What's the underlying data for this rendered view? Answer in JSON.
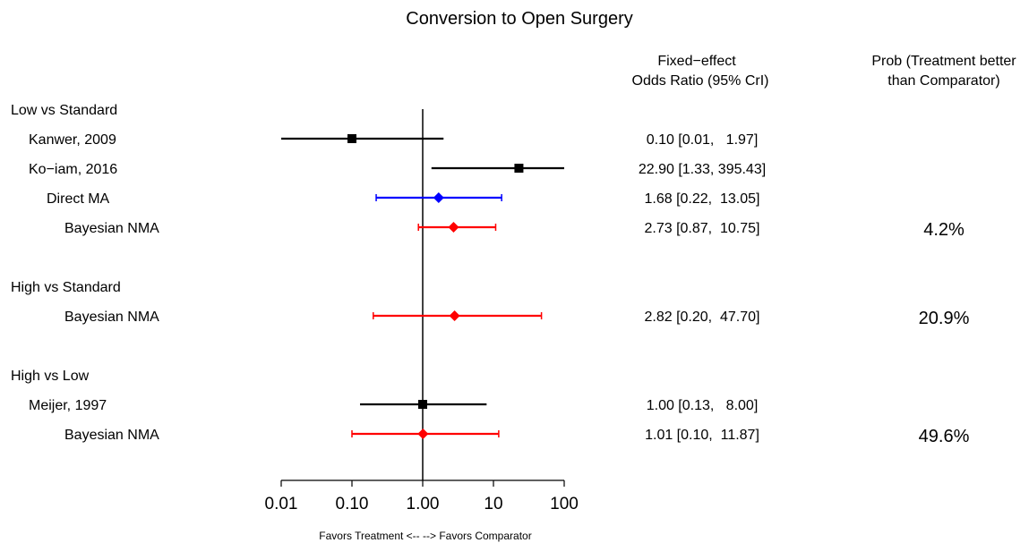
{
  "chart_data": {
    "type": "forest",
    "title": "Conversion to Open Surgery",
    "x_scale": "log10",
    "xlim": [
      0.01,
      100
    ],
    "reference_line": 1.0,
    "x_ticks": [
      {
        "value": 0.01,
        "label": "0.01"
      },
      {
        "value": 0.1,
        "label": "0.10"
      },
      {
        "value": 1,
        "label": "1.00"
      },
      {
        "value": 10,
        "label": "10"
      },
      {
        "value": 100,
        "label": "100"
      }
    ],
    "xlabel": "Favors Treatment <-- --> Favors Comparator",
    "column_headers": {
      "estimate": [
        "Fixed−effect",
        "Odds Ratio (95% CrI)"
      ],
      "probability": [
        "Prob (Treatment better",
        "than Comparator)"
      ]
    },
    "groups": [
      {
        "label": "Low vs Standard",
        "rows": [
          {
            "label": "Kanwer, 2009",
            "type": "study",
            "estimate": 0.1,
            "lower": 0.01,
            "upper": 1.97,
            "text": "0.10 [0.01,   1.97]",
            "color": "#000000",
            "prob": ""
          },
          {
            "label": "Ko−iam, 2016",
            "type": "study",
            "estimate": 22.9,
            "lower": 1.33,
            "upper": 395.43,
            "text": "22.90 [1.33, 395.43]",
            "color": "#000000",
            "prob": ""
          },
          {
            "label": "Direct MA",
            "type": "pooled",
            "estimate": 1.68,
            "lower": 0.22,
            "upper": 13.05,
            "text": "1.68 [0.22,  13.05]",
            "color": "#0000ff",
            "prob": ""
          },
          {
            "label": "Bayesian NMA",
            "type": "pooled",
            "estimate": 2.73,
            "lower": 0.87,
            "upper": 10.75,
            "text": "2.73 [0.87,  10.75]",
            "color": "#ff0000",
            "prob": "4.2%"
          }
        ]
      },
      {
        "label": "High vs Standard",
        "rows": [
          {
            "label": "Bayesian NMA",
            "type": "pooled",
            "estimate": 2.82,
            "lower": 0.2,
            "upper": 47.7,
            "text": "2.82 [0.20,  47.70]",
            "color": "#ff0000",
            "prob": "20.9%"
          }
        ]
      },
      {
        "label": "High vs Low",
        "rows": [
          {
            "label": "Meijer, 1997",
            "type": "study",
            "estimate": 1.0,
            "lower": 0.13,
            "upper": 8.0,
            "text": "1.00 [0.13,   8.00]",
            "color": "#000000",
            "prob": ""
          },
          {
            "label": "Bayesian NMA",
            "type": "pooled",
            "estimate": 1.01,
            "lower": 0.1,
            "upper": 11.87,
            "text": "1.01 [0.10,  11.87]",
            "color": "#ff0000",
            "prob": "49.6%"
          }
        ]
      }
    ]
  }
}
